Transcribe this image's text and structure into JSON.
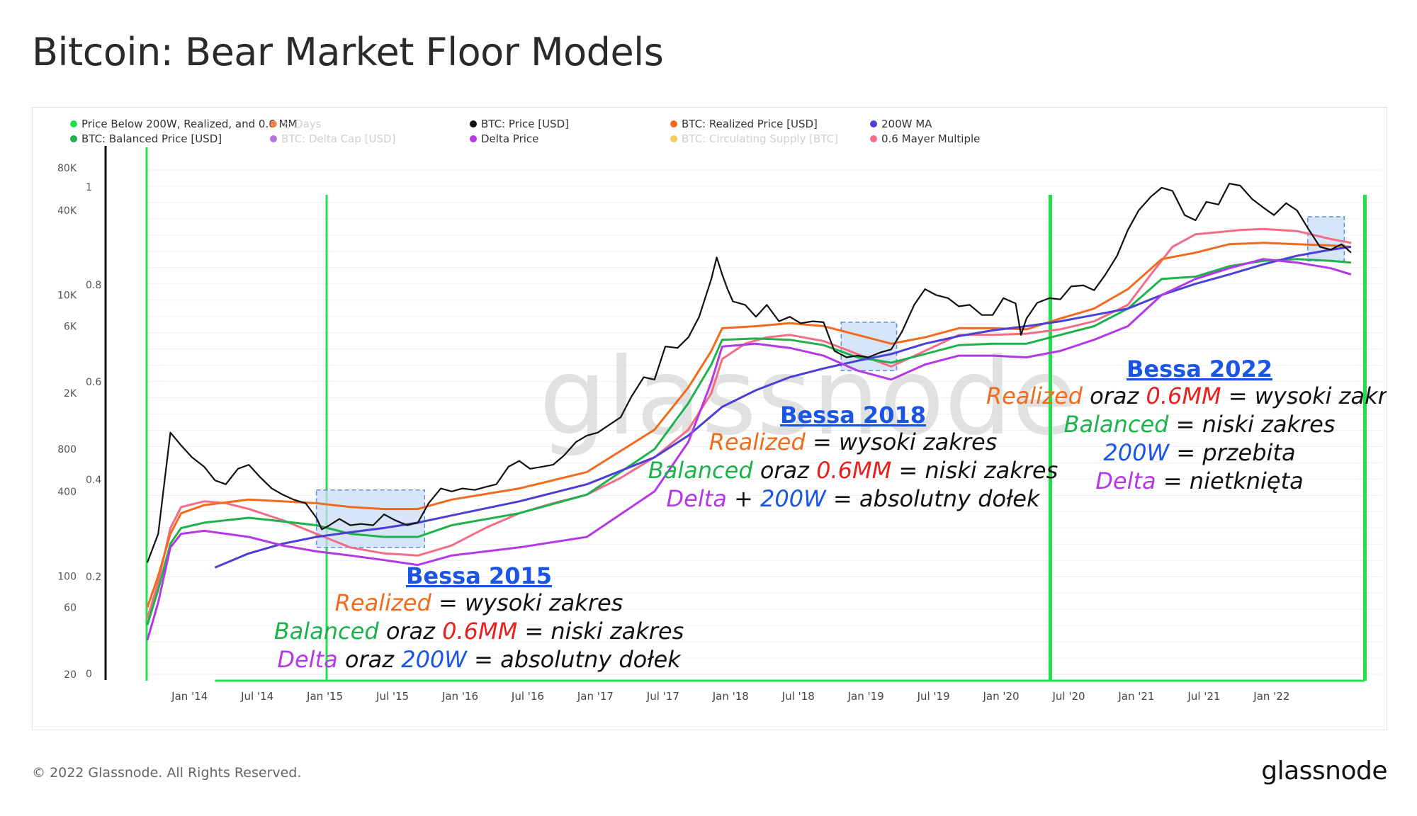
{
  "page": {
    "title": "Bitcoin: Bear Market Floor Models",
    "copyright": "© 2022 Glassnode. All Rights Reserved.",
    "logo_text": "glassnode",
    "watermark": "glassnode"
  },
  "chart_data": {
    "type": "line",
    "title": "Bitcoin: Bear Market Floor Models",
    "yscale_left": "log",
    "left_ticks": [
      "80K",
      "40K",
      "10K",
      "6K",
      "2K",
      "800",
      "400",
      "100",
      "60",
      "20"
    ],
    "left_tick_values": [
      80000,
      40000,
      10000,
      6000,
      2000,
      800,
      400,
      100,
      60,
      20
    ],
    "right_ticks": [
      "1",
      "0.8",
      "0.6",
      "0.4",
      "0.2",
      "0"
    ],
    "right_tick_values": [
      1,
      0.8,
      0.6,
      0.4,
      0.2,
      0
    ],
    "xlim": [
      2013.75,
      2022.75
    ],
    "x_ticks": [
      "Jan '14",
      "Jul '14",
      "Jan '15",
      "Jul '15",
      "Jan '16",
      "Jul '16",
      "Jan '17",
      "Jul '17",
      "Jan '18",
      "Jul '18",
      "Jan '19",
      "Jul '19",
      "Jan '20",
      "Jul '20",
      "Jan '21",
      "Jul '21",
      "Jan '22"
    ],
    "x_tick_values": [
      2014.0,
      2014.5,
      2015.0,
      2015.5,
      2016.0,
      2016.5,
      2017.0,
      2017.5,
      2018.0,
      2018.5,
      2019.0,
      2019.5,
      2020.0,
      2020.5,
      2021.0,
      2021.5,
      2022.0
    ],
    "legend": [
      {
        "label": "Price Below 200W, Realized, and 0.6 MM",
        "color": "#22e04a",
        "active": true
      },
      {
        "label": "% Days",
        "color": "#f07a3a",
        "active": false
      },
      {
        "label": "BTC: Price [USD]",
        "color": "#111111",
        "active": true
      },
      {
        "label": "BTC: Realized Price [USD]",
        "color": "#f26b1d",
        "active": true
      },
      {
        "label": "200W MA",
        "color": "#4a3fd6",
        "active": true
      },
      {
        "label": "BTC: Balanced Price [USD]",
        "color": "#1db24a",
        "active": true
      },
      {
        "label": "BTC: Delta Cap [USD]",
        "color": "#a85ce0",
        "active": false
      },
      {
        "label": "Delta Price",
        "color": "#b437e8",
        "active": true
      },
      {
        "label": "BTC: Circulating Supply [BTC]",
        "color": "#f5c23a",
        "active": false
      },
      {
        "label": "0.6 Mayer Multiple",
        "color": "#f26d85",
        "active": true
      }
    ],
    "series": [
      {
        "name": "BTC: Price [USD]",
        "color": "#111111",
        "width": 2.2,
        "x": [
          2013.75,
          2013.83,
          2013.92,
          2014.0,
          2014.08,
          2014.17,
          2014.25,
          2014.33,
          2014.42,
          2014.5,
          2014.58,
          2014.67,
          2014.75,
          2014.83,
          2014.92,
          2015.0,
          2015.04,
          2015.08,
          2015.17,
          2015.25,
          2015.33,
          2015.42,
          2015.5,
          2015.58,
          2015.67,
          2015.75,
          2015.83,
          2015.92,
          2016.0,
          2016.08,
          2016.17,
          2016.25,
          2016.33,
          2016.42,
          2016.5,
          2016.58,
          2016.67,
          2016.75,
          2016.83,
          2016.92,
          2017.0,
          2017.08,
          2017.17,
          2017.25,
          2017.33,
          2017.42,
          2017.5,
          2017.58,
          2017.67,
          2017.75,
          2017.83,
          2017.92,
          2017.96,
          2018.0,
          2018.04,
          2018.08,
          2018.17,
          2018.25,
          2018.33,
          2018.42,
          2018.5,
          2018.58,
          2018.67,
          2018.75,
          2018.83,
          2018.92,
          2019.0,
          2019.08,
          2019.17,
          2019.25,
          2019.33,
          2019.42,
          2019.5,
          2019.58,
          2019.67,
          2019.75,
          2019.83,
          2019.92,
          2020.0,
          2020.08,
          2020.17,
          2020.21,
          2020.25,
          2020.33,
          2020.42,
          2020.5,
          2020.58,
          2020.67,
          2020.75,
          2020.83,
          2020.92,
          2021.0,
          2021.08,
          2021.17,
          2021.25,
          2021.33,
          2021.42,
          2021.5,
          2021.58,
          2021.67,
          2021.75,
          2021.83,
          2021.92,
          2022.0,
          2022.08,
          2022.17,
          2022.25,
          2022.33,
          2022.42,
          2022.5,
          2022.58,
          2022.65
        ],
        "y": [
          125,
          200,
          1050,
          850,
          700,
          600,
          480,
          450,
          580,
          620,
          510,
          420,
          380,
          350,
          330,
          260,
          215,
          225,
          255,
          230,
          235,
          230,
          275,
          250,
          230,
          240,
          330,
          420,
          400,
          420,
          410,
          430,
          450,
          600,
          660,
          580,
          600,
          620,
          720,
          900,
          1000,
          1050,
          1200,
          1350,
          1900,
          2600,
          2500,
          4300,
          4200,
          5000,
          7000,
          13000,
          18500,
          14000,
          11000,
          9000,
          8500,
          7000,
          8500,
          6500,
          7000,
          6300,
          6500,
          6400,
          4000,
          3600,
          3700,
          3600,
          3900,
          4100,
          5500,
          8500,
          11000,
          10000,
          9500,
          8300,
          8500,
          7200,
          7200,
          9500,
          8700,
          5200,
          6800,
          8800,
          9500,
          9300,
          11500,
          11700,
          10800,
          13800,
          19000,
          29000,
          40000,
          50000,
          58000,
          55000,
          37000,
          34000,
          46000,
          44000,
          62000,
          60000,
          48000,
          42000,
          37000,
          45000,
          40000,
          30000,
          22000,
          21000,
          23000,
          20000
        ]
      },
      {
        "name": "BTC: Realized Price [USD]",
        "color": "#f26b1d",
        "width": 3,
        "x": [
          2013.75,
          2013.83,
          2013.92,
          2014.0,
          2014.17,
          2014.5,
          2014.75,
          2015.0,
          2015.25,
          2015.5,
          2015.75,
          2016.0,
          2016.5,
          2017.0,
          2017.5,
          2017.75,
          2017.92,
          2018.0,
          2018.25,
          2018.5,
          2018.75,
          2019.0,
          2019.25,
          2019.5,
          2019.75,
          2020.0,
          2020.25,
          2020.5,
          2020.75,
          2021.0,
          2021.25,
          2021.5,
          2021.75,
          2022.0,
          2022.25,
          2022.5,
          2022.65
        ],
        "y": [
          60,
          100,
          200,
          280,
          320,
          350,
          340,
          330,
          310,
          300,
          300,
          350,
          420,
          550,
          1100,
          2200,
          4000,
          5800,
          6000,
          6300,
          6000,
          5200,
          4500,
          5000,
          5800,
          5800,
          5700,
          6800,
          8000,
          11000,
          18000,
          20000,
          23000,
          23500,
          23000,
          22500,
          22000
        ]
      },
      {
        "name": "BTC: Balanced Price [USD]",
        "color": "#1db24a",
        "width": 3,
        "x": [
          2013.75,
          2013.83,
          2013.92,
          2014.0,
          2014.17,
          2014.5,
          2014.75,
          2015.0,
          2015.25,
          2015.5,
          2015.75,
          2016.0,
          2016.5,
          2017.0,
          2017.5,
          2017.75,
          2017.92,
          2018.0,
          2018.25,
          2018.5,
          2018.75,
          2019.0,
          2019.25,
          2019.5,
          2019.75,
          2020.0,
          2020.25,
          2020.5,
          2020.75,
          2021.0,
          2021.25,
          2021.5,
          2021.75,
          2022.0,
          2022.25,
          2022.5,
          2022.65
        ],
        "y": [
          45,
          80,
          170,
          220,
          240,
          260,
          245,
          230,
          200,
          190,
          190,
          230,
          280,
          380,
          800,
          1700,
          3200,
          4800,
          4900,
          4800,
          4400,
          3600,
          3300,
          3800,
          4400,
          4500,
          4500,
          5200,
          6000,
          8000,
          13000,
          13500,
          16000,
          17500,
          18000,
          17500,
          17000
        ]
      },
      {
        "name": "200W MA",
        "color": "#4a3fd6",
        "width": 3,
        "x": [
          2014.25,
          2014.5,
          2014.75,
          2015.0,
          2015.25,
          2015.5,
          2015.75,
          2016.0,
          2016.5,
          2017.0,
          2017.5,
          2017.75,
          2018.0,
          2018.25,
          2018.5,
          2018.75,
          2019.0,
          2019.25,
          2019.5,
          2019.75,
          2020.0,
          2020.25,
          2020.5,
          2020.75,
          2021.0,
          2021.25,
          2021.5,
          2021.75,
          2022.0,
          2022.25,
          2022.5,
          2022.65
        ],
        "y": [
          115,
          145,
          170,
          190,
          205,
          220,
          240,
          270,
          340,
          450,
          700,
          1000,
          1600,
          2100,
          2600,
          3000,
          3400,
          3800,
          4500,
          5100,
          5600,
          6000,
          6500,
          7200,
          8000,
          10000,
          12000,
          14000,
          16500,
          19000,
          21000,
          22000
        ]
      },
      {
        "name": "Delta Price",
        "color": "#b437e8",
        "width": 3,
        "x": [
          2013.75,
          2013.83,
          2013.92,
          2014.0,
          2014.17,
          2014.5,
          2014.75,
          2015.0,
          2015.25,
          2015.5,
          2015.75,
          2016.0,
          2016.5,
          2017.0,
          2017.5,
          2017.75,
          2017.92,
          2018.0,
          2018.25,
          2018.5,
          2018.75,
          2019.0,
          2019.25,
          2019.5,
          2019.75,
          2020.0,
          2020.25,
          2020.5,
          2020.75,
          2021.0,
          2021.25,
          2021.5,
          2021.75,
          2022.0,
          2022.25,
          2022.5,
          2022.65
        ],
        "y": [
          35,
          65,
          160,
          200,
          210,
          190,
          165,
          150,
          140,
          130,
          120,
          140,
          160,
          190,
          400,
          900,
          2400,
          4300,
          4500,
          4200,
          3700,
          2900,
          2500,
          3200,
          3700,
          3700,
          3600,
          4000,
          4800,
          6000,
          10000,
          13000,
          15500,
          18000,
          17000,
          15500,
          14000
        ]
      },
      {
        "name": "0.6 Mayer Multiple",
        "color": "#f26d85",
        "width": 3,
        "x": [
          2013.75,
          2013.83,
          2013.92,
          2014.0,
          2014.17,
          2014.33,
          2014.5,
          2014.75,
          2015.0,
          2015.25,
          2015.5,
          2015.75,
          2016.0,
          2016.25,
          2016.5,
          2016.75,
          2017.0,
          2017.25,
          2017.5,
          2017.75,
          2017.92,
          2018.0,
          2018.17,
          2018.33,
          2018.5,
          2018.75,
          2019.0,
          2019.25,
          2019.5,
          2019.75,
          2020.0,
          2020.25,
          2020.5,
          2020.75,
          2021.0,
          2021.17,
          2021.33,
          2021.5,
          2021.67,
          2021.83,
          2022.0,
          2022.25,
          2022.5,
          2022.65
        ],
        "y": [
          50,
          90,
          220,
          310,
          340,
          330,
          300,
          250,
          200,
          160,
          145,
          140,
          165,
          220,
          280,
          330,
          380,
          500,
          700,
          1100,
          2000,
          3500,
          4500,
          5000,
          5200,
          4700,
          3800,
          3100,
          4000,
          5200,
          5200,
          5300,
          5700,
          6500,
          8500,
          14000,
          22000,
          27000,
          28000,
          29000,
          29500,
          28500,
          25000,
          23500
        ]
      }
    ],
    "signal_periods": [
      [
        2013.75,
        2015.0
      ],
      [
        2015.0,
        2015.95
      ],
      [
        2020.17,
        2020.22
      ],
      [
        2022.62,
        2022.66
      ]
    ],
    "signal_label": "Price Below 200W, Realized, and 0.6 MM",
    "annotations": [
      {
        "title": "Bessa 2015",
        "lines": [
          [
            [
              "Realized",
              "#f26b1d"
            ],
            [
              " = wysoki zakres",
              "#111111"
            ]
          ],
          [
            [
              "Balanced",
              "#1db24a"
            ],
            [
              " oraz ",
              "#111111"
            ],
            [
              "0.6MM",
              "#e8201c"
            ],
            [
              " = niski zakres",
              "#111111"
            ]
          ],
          [
            [
              "Delta",
              "#b437e8"
            ],
            [
              " oraz ",
              "#111111"
            ],
            [
              "200W",
              "#1a55e6"
            ],
            [
              " = absolutny dołek",
              "#111111"
            ]
          ]
        ]
      },
      {
        "title": "Bessa 2018",
        "lines": [
          [
            [
              "Realized",
              "#f26b1d"
            ],
            [
              " = wysoki zakres",
              "#111111"
            ]
          ],
          [
            [
              "Balanced",
              "#1db24a"
            ],
            [
              " oraz ",
              "#111111"
            ],
            [
              "0.6MM",
              "#e8201c"
            ],
            [
              " = niski zakres",
              "#111111"
            ]
          ],
          [
            [
              "Delta",
              "#b437e8"
            ],
            [
              " + ",
              "#111111"
            ],
            [
              "200W",
              "#1a55e6"
            ],
            [
              " = absolutny dołek",
              "#111111"
            ]
          ]
        ]
      },
      {
        "title": "Bessa 2022",
        "lines": [
          [
            [
              "Realized",
              "#f26b1d"
            ],
            [
              " oraz ",
              "#111111"
            ],
            [
              "0.6MM",
              "#e8201c"
            ],
            [
              " = wysoki zakres",
              "#111111"
            ]
          ],
          [
            [
              "Balanced",
              "#1db24a"
            ],
            [
              " = niski zakres",
              "#111111"
            ]
          ],
          [
            [
              "200W",
              "#1a55e6"
            ],
            [
              " = przebita",
              "#111111"
            ]
          ],
          [
            [
              "Delta",
              "#b437e8"
            ],
            [
              " = nietknięta",
              "#111111"
            ]
          ]
        ]
      }
    ],
    "highlight_regions": [
      {
        "name": "bear-2015-zone",
        "x": [
          2015.0,
          2015.8
        ],
        "y": [
          160,
          410
        ]
      },
      {
        "name": "bear-2018-zone",
        "x": [
          2018.88,
          2019.29
        ],
        "y": [
          2900,
          6400
        ]
      },
      {
        "name": "bear-2022-zone",
        "x": [
          2022.33,
          2022.6
        ],
        "y": [
          17500,
          36000
        ]
      }
    ]
  }
}
